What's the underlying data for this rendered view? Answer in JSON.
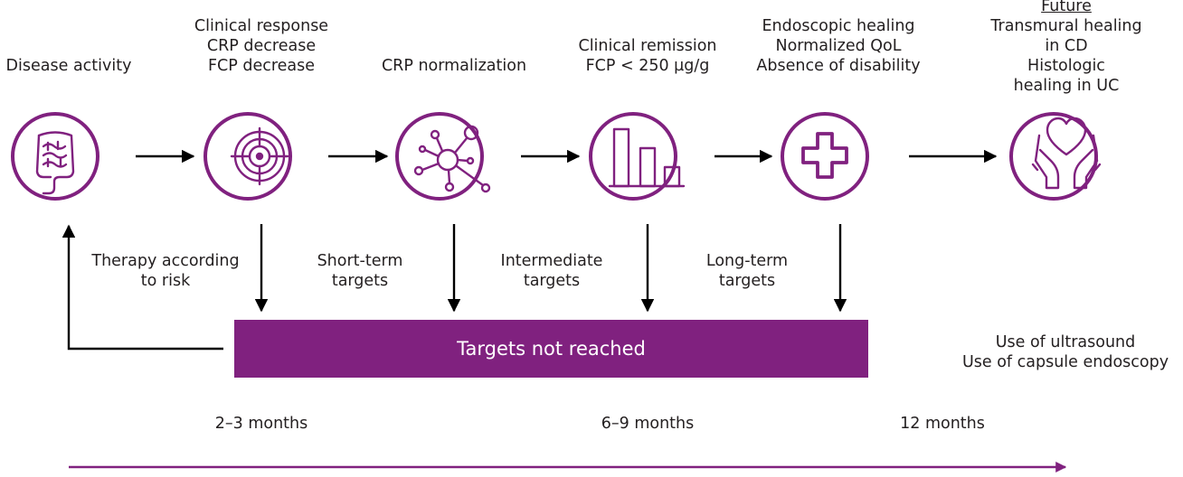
{
  "colors": {
    "accent": "#80217f",
    "arrow": "#000000",
    "text": "#231f20"
  },
  "steps": [
    {
      "icon": "intestine-icon",
      "label_lines": [
        "Disease activity"
      ]
    },
    {
      "icon": "target-icon",
      "label_lines": [
        "Clinical response",
        "CRP decrease",
        "FCP decrease"
      ]
    },
    {
      "icon": "molecule-network-icon",
      "label_lines": [
        "CRP normalization"
      ]
    },
    {
      "icon": "bar-chart-icon",
      "label_lines": [
        "Clinical remission",
        "FCP < 250 µg/g"
      ]
    },
    {
      "icon": "medical-cross-icon",
      "label_lines": [
        "Endoscopic healing",
        "Normalized QoL",
        "Absence of disability"
      ]
    },
    {
      "icon": "hands-heart-icon",
      "label_title": "Future",
      "label_lines": [
        "Transmural healing",
        "in CD",
        "Histologic",
        "healing in UC"
      ]
    }
  ],
  "targets": [
    {
      "lines": [
        "Therapy according",
        "to risk"
      ]
    },
    {
      "lines": [
        "Short-term",
        "targets"
      ]
    },
    {
      "lines": [
        "Intermediate",
        "targets"
      ]
    },
    {
      "lines": [
        "Long-term",
        "targets"
      ]
    }
  ],
  "failure_box": "Targets not reached",
  "future_tools": [
    "Use of ultrasound",
    "Use of capsule endoscopy"
  ],
  "timeline": [
    "2–3 months",
    "6–9 months",
    "12 months"
  ]
}
